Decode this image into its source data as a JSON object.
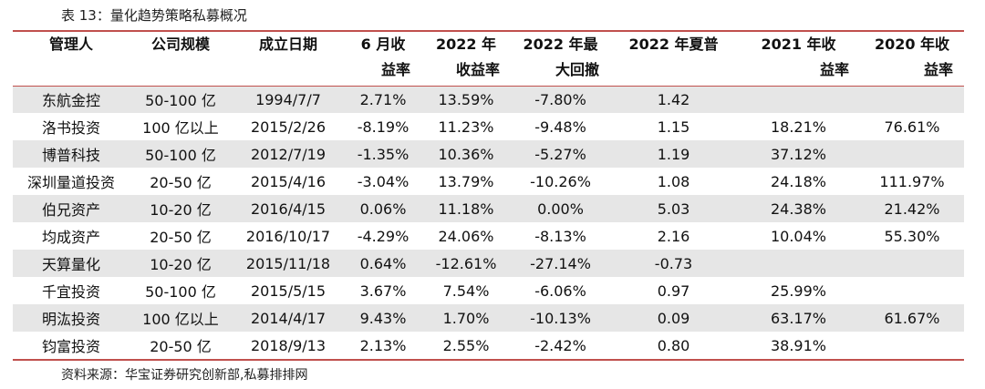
{
  "caption": "表 13：量化趋势策略私募概况",
  "source": "资料来源：华宝证券研究创新部,私募排排网",
  "headers": [
    {
      "l1": "管理人",
      "l2": ""
    },
    {
      "l1": "公司规模",
      "l2": ""
    },
    {
      "l1": "成立日期",
      "l2": ""
    },
    {
      "l1": "6 月收",
      "l2": "益率"
    },
    {
      "l1": "2022 年",
      "l2": "收益率"
    },
    {
      "l1": "2022 年最",
      "l2": "大回撤"
    },
    {
      "l1": "2022 年夏普",
      "l2": ""
    },
    {
      "l1": "2021 年收",
      "l2": "益率"
    },
    {
      "l1": "2020 年收",
      "l2": "益率"
    }
  ],
  "rows": [
    [
      "东航金控",
      "50-100 亿",
      "1994/7/7",
      "2.71%",
      "13.59%",
      "-7.80%",
      "1.42",
      "",
      ""
    ],
    [
      "洛书投资",
      "100 亿以上",
      "2015/2/26",
      "-8.19%",
      "11.23%",
      "-9.48%",
      "1.15",
      "18.21%",
      "76.61%"
    ],
    [
      "博普科技",
      "50-100 亿",
      "2012/7/19",
      "-1.35%",
      "10.36%",
      "-5.27%",
      "1.19",
      "37.12%",
      ""
    ],
    [
      "深圳量道投资",
      "20-50 亿",
      "2015/4/16",
      "-3.04%",
      "13.79%",
      "-10.26%",
      "1.08",
      "24.18%",
      "111.97%"
    ],
    [
      "伯兄资产",
      "10-20 亿",
      "2016/4/15",
      "0.06%",
      "11.18%",
      "0.00%",
      "5.03",
      "24.38%",
      "21.42%"
    ],
    [
      "均成资产",
      "20-50 亿",
      "2016/10/17",
      "-4.29%",
      "24.06%",
      "-8.13%",
      "2.16",
      "10.04%",
      "55.30%"
    ],
    [
      "天算量化",
      "10-20 亿",
      "2015/11/18",
      "0.64%",
      "-12.61%",
      "-27.14%",
      "-0.73",
      "",
      ""
    ],
    [
      "千宜投资",
      "50-100 亿",
      "2015/5/15",
      "3.67%",
      "7.54%",
      "-6.06%",
      "0.97",
      "25.99%",
      ""
    ],
    [
      "明汯投资",
      "100 亿以上",
      "2014/4/17",
      "9.43%",
      "1.70%",
      "-10.13%",
      "0.09",
      "63.17%",
      "61.67%"
    ],
    [
      "钧富投资",
      "20-50 亿",
      "2018/9/13",
      "2.13%",
      "2.55%",
      "-2.42%",
      "0.80",
      "38.91%",
      ""
    ]
  ],
  "colors": {
    "rule": "#c0504d",
    "stripe": "#e6e6e6"
  }
}
